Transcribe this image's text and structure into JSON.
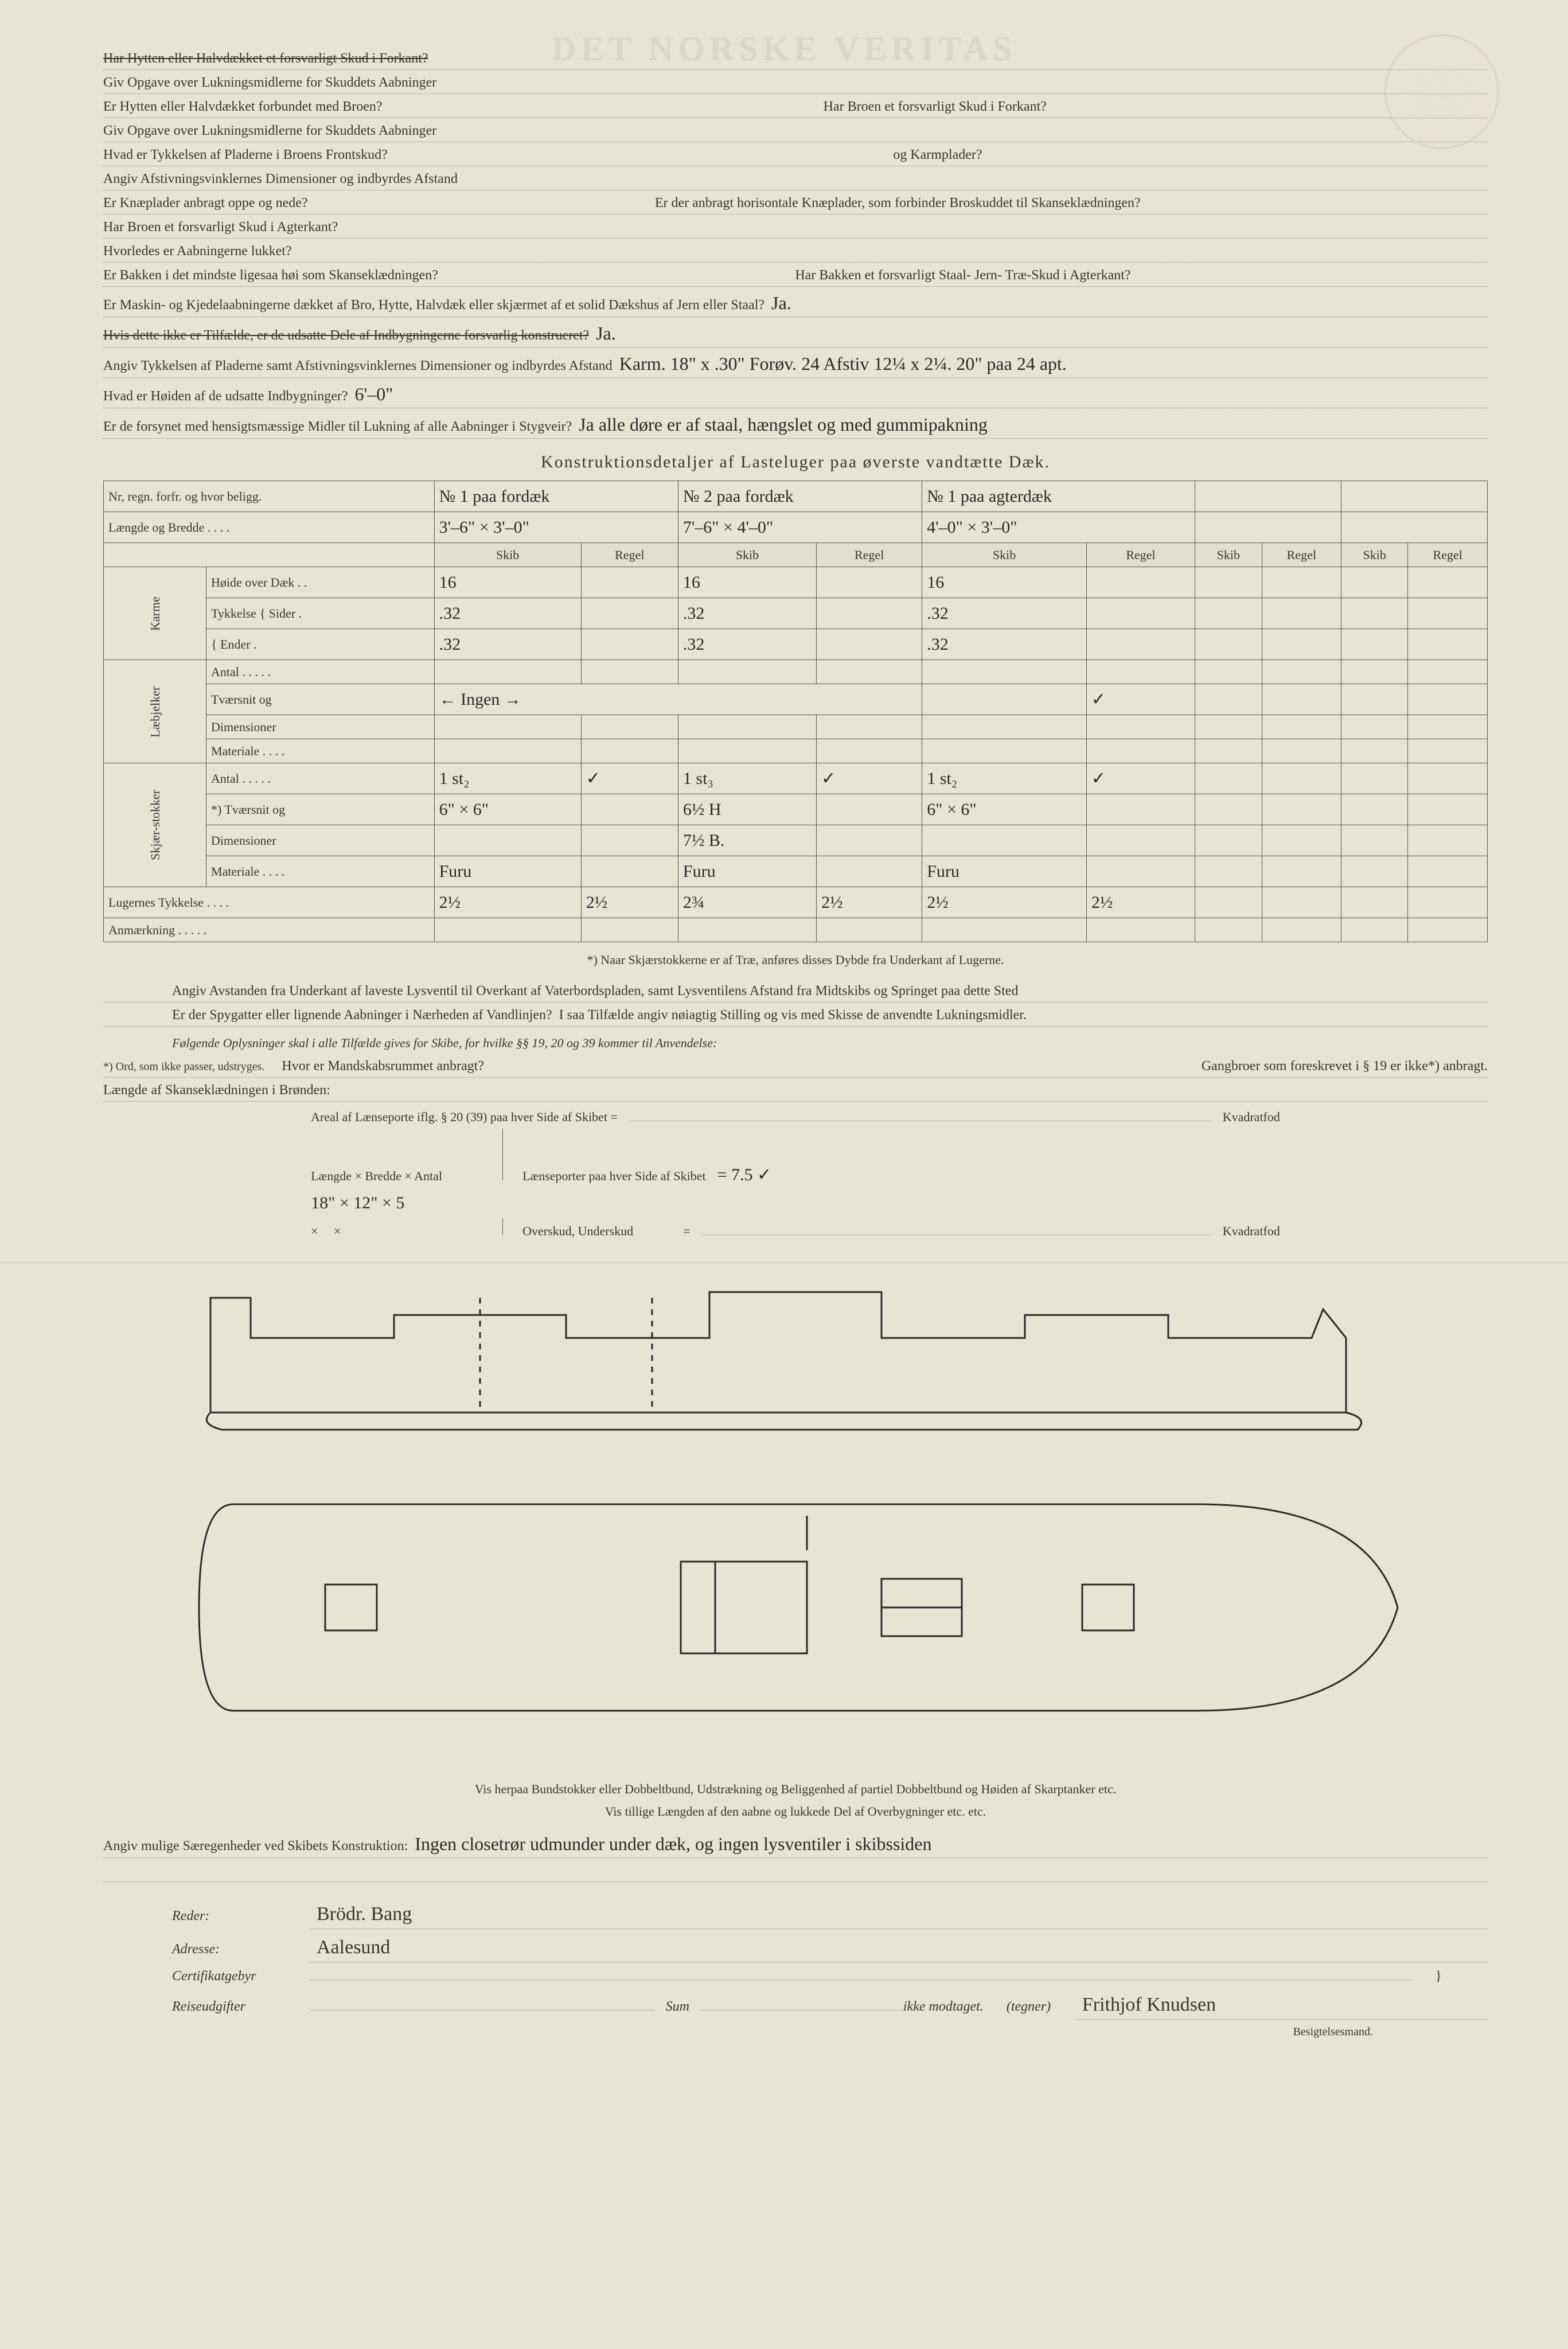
{
  "watermark": "DET NORSKE VERITAS",
  "questions": [
    {
      "label": "Har Hytten eller Halvdækket et forsvarligt Skud i Forkant?",
      "answer": "",
      "struck": true
    },
    {
      "label": "Giv Opgave over Lukningsmidlerne for Skuddets Aabninger",
      "answer": ""
    },
    {
      "label": "Er Hytten eller Halvdækket forbundet med Broen?",
      "answer": "",
      "label2": "Har Broen et forsvarligt Skud i Forkant?"
    },
    {
      "label": "Giv Opgave over Lukningsmidlerne for Skuddets Aabninger",
      "answer": ""
    },
    {
      "label": "Hvad er Tykkelsen af Pladerne i Broens Frontskud?",
      "answer": "",
      "label2": "og Karmplader?"
    },
    {
      "label": "Angiv Afstivningsvinklernes Dimensioner og indbyrdes Afstand",
      "answer": ""
    },
    {
      "label": "Er Knæplader anbragt oppe og nede?",
      "answer": "",
      "label2": "Er der anbragt horisontale Knæplader, som forbinder Broskuddet til Skanseklædningen?"
    },
    {
      "label": "Har Broen et forsvarligt Skud i Agterkant?",
      "answer": ""
    },
    {
      "label": "Hvorledes er Aabningerne lukket?",
      "answer": ""
    },
    {
      "label": "Er Bakken i det mindste ligesaa høi som Skanseklædningen?",
      "answer": "",
      "label2": "Har Bakken et forsvarligt Staal- Jern- Træ-Skud i Agterkant?",
      "struck_part": "mindste ligesaa høi som Skanseklædningen"
    },
    {
      "label": "Er Maskin- og Kjedelaabningerne dækket af Bro, Hytte, Halvdæk eller skjærmet af et solid Dækshus af Jern eller Staal?",
      "answer": "Ja."
    },
    {
      "label": "Hvis dette ikke er Tilfælde, er de udsatte Dele af Indbygningerne forsvarlig konstrueret?",
      "answer": "Ja.",
      "struck": true
    },
    {
      "label": "Angiv Tykkelsen af Pladerne samt Afstivningsvinklernes Dimensioner og indbyrdes Afstand",
      "answer": "Karm. 18\" x .30\" Forøv. 24 Afstiv 12¼ x 2¼. 20\" paa 24 apt."
    },
    {
      "label": "Hvad er Høiden af de udsatte Indbygninger?",
      "answer": "6'–0\""
    },
    {
      "label": "Er de forsynet med hensigtsmæssige Midler til Lukning af alle Aabninger i Stygveir?",
      "answer": "Ja alle døre er af staal, hængslet og med gummipakning"
    }
  ],
  "table_title": "Konstruktionsdetaljer af Lasteluger paa øverste vandtætte Dæk.",
  "table": {
    "header_row1": [
      "Nr, regn. forfr. og hvor beligg.",
      "№ 1 paa fordæk",
      "№ 2 paa fordæk",
      "№ 1 paa agterdæk",
      "",
      ""
    ],
    "header_row2": [
      "Længde og Bredde . . . .",
      "3'–6\" × 3'–0\"",
      "7'–6\" × 4'–0\"",
      "4'–0\" × 3'–0\"",
      "",
      ""
    ],
    "col_headers": [
      "Skib",
      "Regel",
      "Skib",
      "Regel",
      "Skib",
      "Regel",
      "Skib",
      "Regel",
      "Skib",
      "Regel"
    ],
    "groups": [
      {
        "side": "Karme",
        "rows": [
          {
            "label": "Høide over Dæk . .",
            "cells": [
              "16",
              "",
              "16",
              "",
              "16",
              "",
              "",
              "",
              "",
              ""
            ]
          },
          {
            "label": "Tykkelse { Sider .",
            "cells": [
              ".32",
              "",
              ".32",
              "",
              ".32",
              "",
              "",
              "",
              "",
              ""
            ]
          },
          {
            "label": "          { Ender .",
            "cells": [
              ".32",
              "",
              ".32",
              "",
              ".32",
              "",
              "",
              "",
              "",
              ""
            ]
          }
        ]
      },
      {
        "side": "Læbjelker",
        "rows": [
          {
            "label": "Antal . . . . .",
            "cells": [
              "",
              "",
              "",
              "",
              "",
              "",
              "",
              "",
              "",
              ""
            ]
          },
          {
            "label": "Tværsnit og",
            "cells_merged": "←   Ingen   →",
            "tick_col": 5
          },
          {
            "label": "   Dimensioner",
            "cells": [
              "",
              "",
              "",
              "",
              "",
              "",
              "",
              "",
              "",
              ""
            ]
          },
          {
            "label": "Materiale . . . .",
            "cells": [
              "",
              "",
              "",
              "",
              "",
              "",
              "",
              "",
              "",
              ""
            ]
          }
        ]
      },
      {
        "side": "Skjær-stokker",
        "rows": [
          {
            "label": "Antal . . . . .",
            "cells": [
              "1 st₂",
              "✓",
              "1 st₃",
              "✓",
              "1 st₂",
              "✓",
              "",
              "",
              "",
              ""
            ]
          },
          {
            "label": "*) Tværsnit og",
            "cells": [
              "6\" × 6\"",
              "",
              "6½  H",
              "",
              "6\" × 6\"",
              "",
              "",
              "",
              "",
              ""
            ]
          },
          {
            "label": "     Dimensioner",
            "cells": [
              "",
              "",
              "7½ B.",
              "",
              "",
              "",
              "",
              "",
              "",
              ""
            ]
          },
          {
            "label": "Materiale . . . .",
            "cells": [
              "Furu",
              "",
              "Furu",
              "",
              "Furu",
              "",
              "",
              "",
              "",
              ""
            ]
          }
        ]
      }
    ],
    "lugernes": {
      "label": "Lugernes Tykkelse . . . .",
      "cells": [
        "2½",
        "2½",
        "2¾",
        "2½",
        "2½",
        "2½",
        "",
        "",
        "",
        ""
      ]
    },
    "anm": {
      "label": "Anmærkning . . . . .",
      "cells": [
        "",
        "",
        "",
        "",
        "",
        "",
        "",
        "",
        "",
        ""
      ]
    }
  },
  "table_note": "*) Naar Skjærstokkerne er af Træ, anføres disses Dybde fra Underkant af Lugerne.",
  "mid_questions": [
    {
      "label": "Angiv Avstanden fra Underkant af laveste Lysventil til Overkant af Vaterbordspladen, samt Lysventilens Afstand fra Midtskibs og Springet paa dette Sted",
      "answer": ""
    },
    {
      "label": "Er der Spygatter eller lignende Aabninger i Nærheden af Vandlinjen?  I saa Tilfælde angiv nøiagtig Stilling og vis med Skisse de anvendte Lukningsmidler.",
      "answer": ""
    }
  ],
  "oplysninger_intro": "Følgende Oplysninger skal i alle Tilfælde gives for Skibe, for hvilke §§ 19, 20 og 39 kommer til Anvendelse:",
  "opl_note1": "*) Ord, som ikke passer, udstryges.",
  "opl_q1": "Hvor er Mandskabsrummet anbragt?",
  "opl_q1b": "Gangbroer som foreskrevet i § 19 er ikke*) anbragt.",
  "opl_q2": "Længde af Skanseklædningen i Brønden:",
  "lenseporte": {
    "title": "Areal af Lænseporte iflg. § 20 (39) paa hver Side af Skibet =",
    "unit": "Kvadratfod",
    "row1_label": "Længde × Bredde × Antal",
    "row1_val": "18\" × 12\" × 5",
    "row2_label": "Lænseporter paa hver Side af Skibet",
    "row2_val": "= 7.5 ✓",
    "row3_label": "Overskud, Underskud",
    "row3_val": "=",
    "row3_unit": "Kvadratfod"
  },
  "diagram_caption1": "Vis herpaa Bundstokker eller Dobbeltbund, Udstrækning og Beliggenhed af partiel Dobbeltbund og Høiden af Skarptanker etc.",
  "diagram_caption2": "Vis tillige Længden af den aabne og lukkede Del af Overbygninger etc. etc.",
  "final_q": {
    "label": "Angiv mulige Særegenheder ved Skibets Konstruktion:",
    "answer": "Ingen closetrør udmunder under dæk, og ingen lysventiler i skibssiden"
  },
  "signature": {
    "reder_label": "Reder:",
    "reder_val": "Brödr. Bang",
    "adresse_label": "Adresse:",
    "adresse_val": "Aalesund",
    "cert_label": "Certifikatgebyr",
    "reise_label": "Reiseudgifter",
    "sum_label": "Sum",
    "ikke_label": "ikke modtaget.",
    "tegner_label": "(tegner)",
    "tegner_val": "Frithjof Knudsen",
    "besigt_label": "Besigtelsesmand."
  },
  "ship_diagram": {
    "stroke": "#2a2a2a",
    "stroke_width": 2
  }
}
